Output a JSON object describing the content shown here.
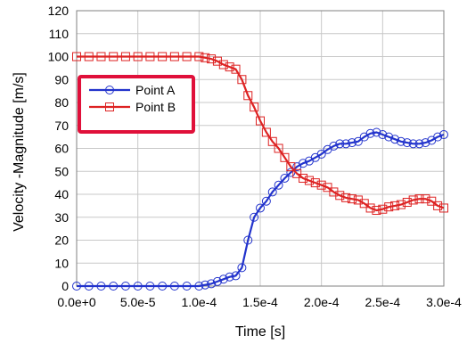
{
  "chart_data": {
    "type": "line",
    "title": "",
    "xlabel": "Time [s]",
    "ylabel": "Velocity -Magnitude [m/s]",
    "xlim": [
      0,
      0.0003
    ],
    "ylim": [
      0,
      120
    ],
    "x_ticks": [
      0,
      5e-05,
      0.0001,
      0.00015,
      0.0002,
      0.00025,
      0.0003
    ],
    "x_tick_labels": [
      "0.0e+0",
      "5.0e-5",
      "1.0e-4",
      "1.5e-4",
      "2.0e-4",
      "2.5e-4",
      "3.0e-4"
    ],
    "y_ticks": [
      0,
      10,
      20,
      30,
      40,
      50,
      60,
      70,
      80,
      90,
      100,
      110,
      120
    ],
    "y_tick_labels": [
      "0",
      "10",
      "20",
      "30",
      "40",
      "50",
      "60",
      "70",
      "80",
      "90",
      "100",
      "110",
      "120"
    ],
    "grid": true,
    "legend_position": "top-left",
    "series": [
      {
        "name": "Point A",
        "color": "#2233cc",
        "marker": "circle",
        "x": [
          0,
          1e-05,
          2e-05,
          3e-05,
          4e-05,
          5e-05,
          6e-05,
          7e-05,
          8e-05,
          9e-05,
          0.0001,
          0.000105,
          0.00011,
          0.000115,
          0.00012,
          0.000125,
          0.00013,
          0.000135,
          0.00014,
          0.000145,
          0.00015,
          0.000155,
          0.00016,
          0.000165,
          0.00017,
          0.000175,
          0.00018,
          0.000185,
          0.00019,
          0.000195,
          0.0002,
          0.000205,
          0.00021,
          0.000215,
          0.00022,
          0.000225,
          0.00023,
          0.000235,
          0.00024,
          0.000245,
          0.00025,
          0.000255,
          0.00026,
          0.000265,
          0.00027,
          0.000275,
          0.00028,
          0.000285,
          0.00029,
          0.000295,
          0.0003
        ],
        "y": [
          0,
          0,
          0,
          0,
          0,
          0,
          0,
          0,
          0,
          0,
          0,
          0.5,
          1,
          2,
          3,
          4,
          4.5,
          8,
          20,
          30,
          34,
          37,
          41,
          44,
          47,
          49.5,
          52,
          53.5,
          54.5,
          56,
          57.5,
          59.5,
          61,
          62,
          62,
          62.5,
          63,
          65,
          66.5,
          67,
          66,
          65,
          64,
          63,
          62.5,
          62,
          62,
          62.5,
          63.5,
          65,
          66
        ]
      },
      {
        "name": "Point B",
        "color": "#dd2222",
        "marker": "square",
        "x": [
          0,
          1e-05,
          2e-05,
          3e-05,
          4e-05,
          5e-05,
          6e-05,
          7e-05,
          8e-05,
          9e-05,
          0.0001,
          0.000105,
          0.00011,
          0.000115,
          0.00012,
          0.000125,
          0.00013,
          0.000135,
          0.00014,
          0.000145,
          0.00015,
          0.000155,
          0.00016,
          0.000165,
          0.00017,
          0.000175,
          0.00018,
          0.000185,
          0.00019,
          0.000195,
          0.0002,
          0.000205,
          0.00021,
          0.000215,
          0.00022,
          0.000225,
          0.00023,
          0.000235,
          0.00024,
          0.000245,
          0.00025,
          0.000255,
          0.00026,
          0.000265,
          0.00027,
          0.000275,
          0.00028,
          0.000285,
          0.00029,
          0.000295,
          0.0003
        ],
        "y": [
          100,
          100,
          100,
          100,
          100,
          100,
          100,
          100,
          100,
          100,
          100,
          99.5,
          99,
          98,
          96.5,
          95.5,
          94.5,
          90,
          83,
          78,
          72,
          67,
          63,
          60,
          56,
          52,
          49,
          47,
          46,
          45,
          44,
          43,
          41,
          39.5,
          38.5,
          38,
          37.5,
          36,
          34,
          33,
          33.5,
          34.5,
          35,
          35.5,
          36.5,
          37.5,
          38,
          38,
          37,
          35,
          34
        ]
      }
    ]
  }
}
